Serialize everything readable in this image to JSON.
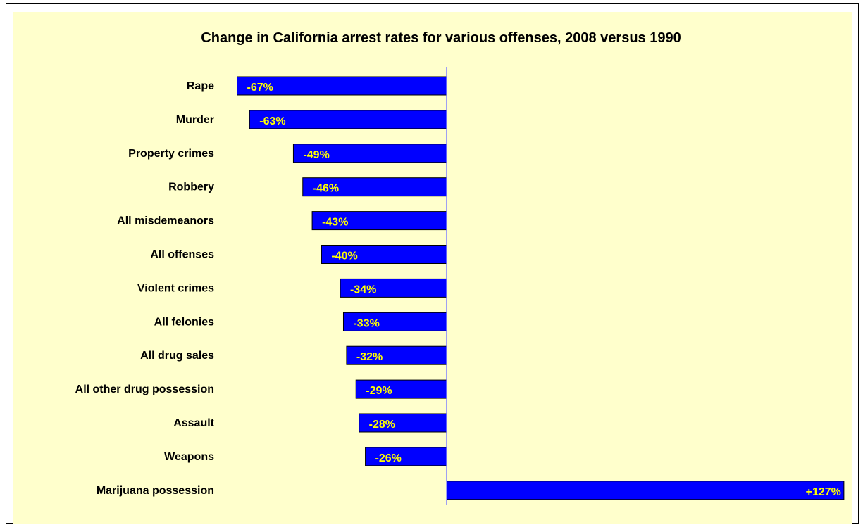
{
  "chart_data": {
    "type": "bar",
    "orientation": "horizontal",
    "title": "Change in California arrest rates for various offenses, 2008 versus 1990",
    "categories": [
      "Rape",
      "Murder",
      "Property crimes",
      "Robbery",
      "All misdemeanors",
      "All offenses",
      "Violent crimes",
      "All felonies",
      "All drug sales",
      "All other drug possession",
      "Assault",
      "Weapons",
      "Marijuana possession"
    ],
    "values": [
      -67,
      -63,
      -49,
      -46,
      -43,
      -40,
      -34,
      -33,
      -32,
      -29,
      -28,
      -26,
      127
    ],
    "data_labels": [
      "-67%",
      "-63%",
      "-49%",
      "-46%",
      "-43%",
      "-40%",
      "-34%",
      "-33%",
      "-32%",
      "-29%",
      "-28%",
      "-26%",
      "+127%"
    ],
    "xlim": [
      -67,
      127
    ],
    "grid": false,
    "legend": "none",
    "colors": {
      "bar_fill": "#0000ff",
      "bar_stroke": "#000000",
      "label_text": "#ffff00",
      "background": "#ffffcc",
      "axis_line": "#8080ff"
    }
  }
}
